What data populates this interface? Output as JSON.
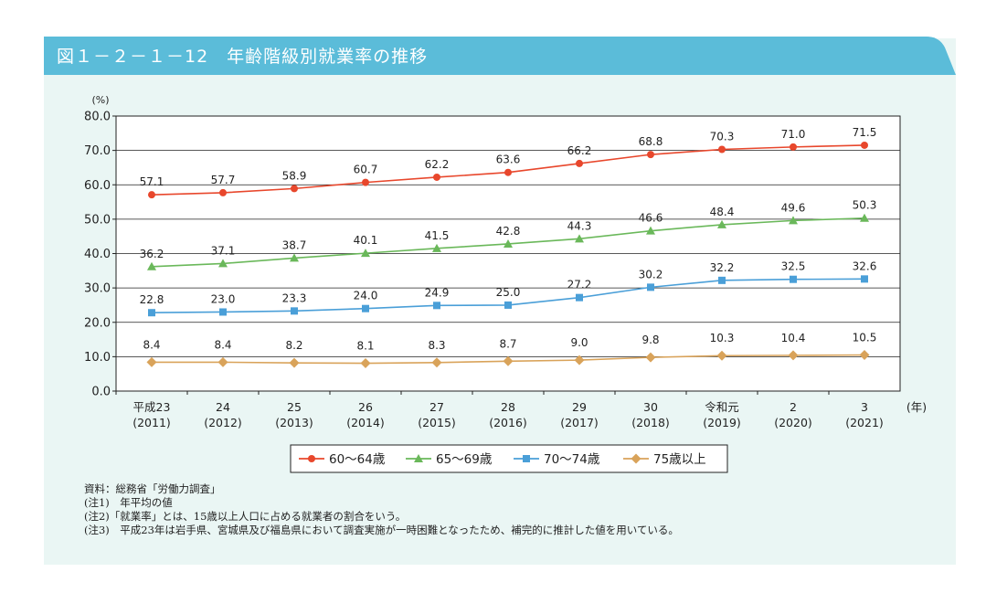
{
  "header": {
    "title": "図１－２－１－12　年齢階級別就業率の推移"
  },
  "colors": {
    "title_bg": "#5bbcd9",
    "panel_bg": "#eaf6f4"
  },
  "chart_data": {
    "type": "line",
    "y_unit": "(%)",
    "x_unit": "(年)",
    "ylim": [
      0,
      80
    ],
    "yticks": [
      "0.0",
      "10.0",
      "20.0",
      "30.0",
      "40.0",
      "50.0",
      "60.0",
      "70.0",
      "80.0"
    ],
    "grid": true,
    "legend_position": "bottom",
    "categories": [
      {
        "top": "平成23",
        "bottom": "(2011)"
      },
      {
        "top": "24",
        "bottom": "(2012)"
      },
      {
        "top": "25",
        "bottom": "(2013)"
      },
      {
        "top": "26",
        "bottom": "(2014)"
      },
      {
        "top": "27",
        "bottom": "(2015)"
      },
      {
        "top": "28",
        "bottom": "(2016)"
      },
      {
        "top": "29",
        "bottom": "(2017)"
      },
      {
        "top": "30",
        "bottom": "(2018)"
      },
      {
        "top": "令和元",
        "bottom": "(2019)"
      },
      {
        "top": "2",
        "bottom": "(2020)"
      },
      {
        "top": "3",
        "bottom": "(2021)"
      }
    ],
    "series": [
      {
        "name": "60～64歳",
        "color": "#e8472c",
        "marker": "circle",
        "values": [
          57.1,
          57.7,
          58.9,
          60.7,
          62.2,
          63.6,
          66.2,
          68.8,
          70.3,
          71.0,
          71.5
        ],
        "labels": [
          "57.1",
          "57.7",
          "58.9",
          "60.7",
          "62.2",
          "63.6",
          "66.2",
          "68.8",
          "70.3",
          "71.0",
          "71.5"
        ]
      },
      {
        "name": "65～69歳",
        "color": "#6ab85a",
        "marker": "triangle",
        "values": [
          36.2,
          37.1,
          38.7,
          40.1,
          41.5,
          42.8,
          44.3,
          46.6,
          48.4,
          49.6,
          50.3
        ],
        "labels": [
          "36.2",
          "37.1",
          "38.7",
          "40.1",
          "41.5",
          "42.8",
          "44.3",
          "46.6",
          "48.4",
          "49.6",
          "50.3"
        ]
      },
      {
        "name": "70～74歳",
        "color": "#4a9fd8",
        "marker": "square",
        "values": [
          22.8,
          23.0,
          23.3,
          24.0,
          24.9,
          25.0,
          27.2,
          30.2,
          32.2,
          32.5,
          32.6
        ],
        "labels": [
          "22.8",
          "23.0",
          "23.3",
          "24.0",
          "24.9",
          "25.0",
          "27.2",
          "30.2",
          "32.2",
          "32.5",
          "32.6"
        ]
      },
      {
        "name": "75歳以上",
        "color": "#d9a35a",
        "marker": "diamond",
        "values": [
          8.4,
          8.4,
          8.2,
          8.1,
          8.3,
          8.7,
          9.0,
          9.8,
          10.3,
          10.4,
          10.5
        ],
        "labels": [
          "8.4",
          "8.4",
          "8.2",
          "8.1",
          "8.3",
          "8.7",
          "9.0",
          "9.8",
          "10.3",
          "10.4",
          "10.5"
        ]
      }
    ]
  },
  "notes": [
    "資料：総務省「労働力調査」",
    "(注1)　年平均の値",
    "(注2)「就業率」とは、15歳以上人口に占める就業者の割合をいう。",
    "(注3)　平成23年は岩手県、宮城県及び福島県において調査実施が一時困難となったため、補完的に推計した値を用いている。"
  ]
}
